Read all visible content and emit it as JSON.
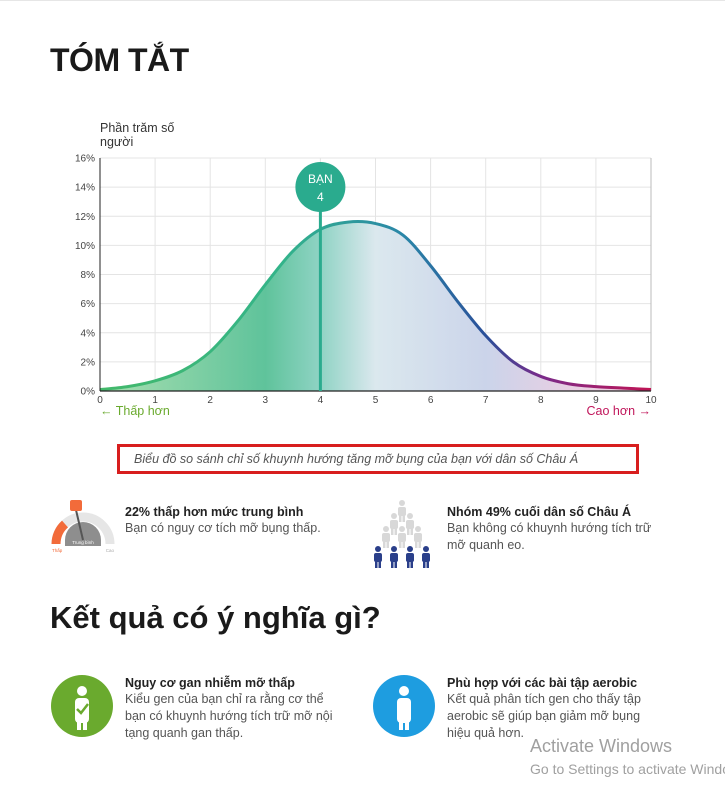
{
  "page": {
    "title": "TÓM TẮT",
    "section2_title": "Kết quả có ý nghĩa gì?"
  },
  "chart_data": {
    "type": "area",
    "ylabel": "Phần trăm số người",
    "x_ticks": [
      "0",
      "1",
      "2",
      "3",
      "4",
      "5",
      "6",
      "7",
      "8",
      "9",
      "10"
    ],
    "y_ticks": [
      "0%",
      "2%",
      "4%",
      "6%",
      "8%",
      "10%",
      "12%",
      "14%",
      "16%"
    ],
    "xlim": [
      0,
      10
    ],
    "ylim": [
      0,
      16
    ],
    "x": [
      0,
      0.5,
      1,
      1.5,
      2,
      2.5,
      3,
      3.5,
      4,
      4.5,
      5,
      5.5,
      6,
      6.5,
      7,
      7.5,
      8,
      8.5,
      9,
      9.5,
      10
    ],
    "y": [
      0.1,
      0.3,
      0.7,
      1.4,
      2.7,
      4.8,
      7.3,
      9.6,
      11.1,
      11.6,
      11.5,
      10.7,
      8.6,
      6.1,
      3.8,
      2.0,
      1.0,
      0.5,
      0.3,
      0.2,
      0.1
    ],
    "marker": {
      "label": "BẠN",
      "value": "4",
      "x": 4
    },
    "low_label": "← Thấp hơn",
    "high_label": "Cao hơn →",
    "grid": true,
    "colors": {
      "line_start": "#43b96a",
      "line_mid": "#2a4f99",
      "line_end": "#b0145e",
      "marker": "#2aab8e"
    }
  },
  "caption": "Biểu đồ so sánh chỉ số khuynh hướng tăng mỡ bụng của bạn với dân số Châu Á",
  "gauge": {
    "icon": "gauge-icon",
    "center_label": "Trung bình",
    "low_label": "Thấp",
    "high_label": "Cao",
    "title": "22% thấp hơn mức trung bình",
    "desc": "Bạn có nguy cơ tích mỡ bụng thấp."
  },
  "population": {
    "icon": "people-group-icon",
    "title": "Nhóm 49% cuối dân số Châu Á",
    "desc_1": "Bạn không có khuynh hướng tích trữ",
    "desc_2": "mỡ quanh eo."
  },
  "result1": {
    "icon": "person-check-icon",
    "color": "#6aaa2e",
    "title": "Nguy cơ gan nhiễm mỡ thấp",
    "l1": "Kiểu gen của bạn chỉ ra rằng cơ thể",
    "l2": "bạn có khuynh hướng tích trữ mỡ nội",
    "l3": "tạng quanh gan thấp."
  },
  "result2": {
    "icon": "person-icon",
    "color": "#1e9de0",
    "title": "Phù hợp với các bài tập aerobic",
    "l1": "Kết quả phân tích gen cho thấy tập",
    "l2": "aerobic sẽ giúp bạn giảm mỡ bụng",
    "l3": "hiệu quả hơn."
  },
  "watermark": {
    "line1": "Activate Windows",
    "line2": "Go to Settings to activate Windows."
  }
}
